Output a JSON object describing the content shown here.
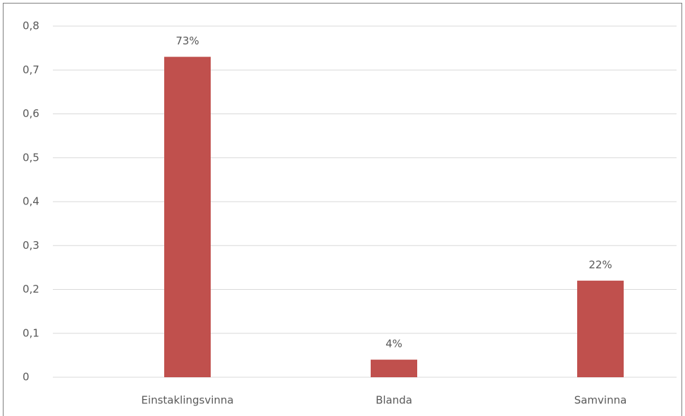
{
  "chart_data": {
    "type": "bar",
    "categories": [
      "Einstaklingsvinna",
      "Blanda",
      "Samvinna"
    ],
    "values": [
      0.73,
      0.04,
      0.22
    ],
    "value_labels": [
      "73%",
      "4%",
      "22%"
    ],
    "color": "#c0504d",
    "ylim": [
      0,
      0.8
    ],
    "yticks": [
      0,
      {
        "value": 0.1,
        "label": "0,1"
      },
      {
        "value": 0.2,
        "label": "0,2"
      },
      {
        "value": 0.3,
        "label": "0,3"
      },
      {
        "value": 0.4,
        "label": "0,4"
      },
      {
        "value": 0.5,
        "label": "0,5"
      },
      {
        "value": 0.6,
        "label": "0,6"
      },
      {
        "value": 0.7,
        "label": "0,7"
      },
      {
        "value": 0.8,
        "label": "0,8"
      }
    ],
    "grid": true
  }
}
